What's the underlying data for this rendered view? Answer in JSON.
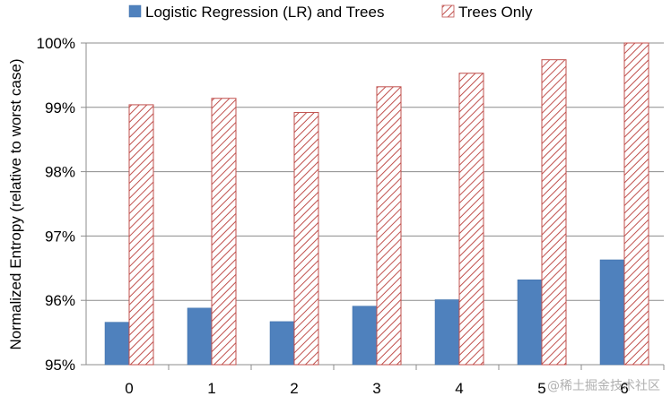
{
  "chart_data": {
    "type": "bar",
    "title": "",
    "xlabel": "",
    "ylabel": "Normalized Entropy (relative to worst case)",
    "categories": [
      "0",
      "1",
      "2",
      "3",
      "4",
      "5",
      "6"
    ],
    "series": [
      {
        "name": "Logistic Regression (LR) and Trees",
        "values": [
          95.66,
          95.88,
          95.67,
          95.91,
          96.01,
          96.32,
          96.63
        ],
        "color": "#4f81bd",
        "pattern": "solid"
      },
      {
        "name": "Trees Only",
        "values": [
          99.04,
          99.14,
          98.92,
          99.32,
          99.53,
          99.74,
          100.0
        ],
        "color": "#c0504d",
        "pattern": "diagonal-hatch"
      }
    ],
    "ylim": [
      95,
      100
    ],
    "yticks": [
      "95%",
      "96%",
      "97%",
      "98%",
      "99%",
      "100%"
    ],
    "grid": true,
    "legend_position": "top"
  },
  "watermark": "@稀土掘金技术社区"
}
